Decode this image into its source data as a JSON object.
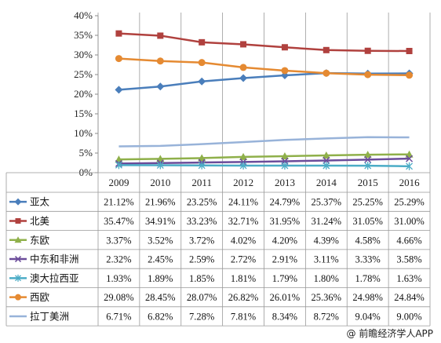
{
  "chart_data": {
    "type": "line",
    "categories": [
      "2009",
      "2010",
      "2011",
      "2012",
      "2013",
      "2014",
      "2015",
      "2016"
    ],
    "y_ticks": [
      "40%",
      "35%",
      "30%",
      "25%",
      "20%",
      "15%",
      "10%",
      "5%",
      "0%"
    ],
    "ylim": [
      0,
      40
    ],
    "grid": "off",
    "legend": "data-table",
    "series": [
      {
        "name": "亚太",
        "color": "#4a7ebb",
        "marker": "diamond",
        "values": [
          21.12,
          21.96,
          23.25,
          24.11,
          24.79,
          25.37,
          25.25,
          25.29
        ],
        "labels": [
          "21.12%",
          "21.96%",
          "23.25%",
          "24.11%",
          "24.79%",
          "25.37%",
          "25.25%",
          "25.29%"
        ]
      },
      {
        "name": "北美",
        "color": "#b0413e",
        "marker": "square",
        "values": [
          35.47,
          34.91,
          33.23,
          32.71,
          31.95,
          31.24,
          31.05,
          31.0
        ],
        "labels": [
          "35.47%",
          "34.91%",
          "33.23%",
          "32.71%",
          "31.95%",
          "31.24%",
          "31.05%",
          "31.00%"
        ]
      },
      {
        "name": "东欧",
        "color": "#8fb04a",
        "marker": "triangle",
        "values": [
          3.37,
          3.52,
          3.72,
          4.02,
          4.2,
          4.39,
          4.58,
          4.66
        ],
        "labels": [
          "3.37%",
          "3.52%",
          "3.72%",
          "4.02%",
          "4.20%",
          "4.39%",
          "4.58%",
          "4.66%"
        ]
      },
      {
        "name": "中东和非洲",
        "color": "#6b4c9a",
        "marker": "x",
        "values": [
          2.32,
          2.45,
          2.59,
          2.72,
          2.91,
          3.11,
          3.33,
          3.58
        ],
        "labels": [
          "2.32%",
          "2.45%",
          "2.59%",
          "2.72%",
          "2.91%",
          "3.11%",
          "3.33%",
          "3.58%"
        ]
      },
      {
        "name": "澳大拉西亚",
        "color": "#4bacc6",
        "marker": "star",
        "values": [
          1.93,
          1.89,
          1.85,
          1.81,
          1.79,
          1.8,
          1.78,
          1.63
        ],
        "labels": [
          "1.93%",
          "1.89%",
          "1.85%",
          "1.81%",
          "1.79%",
          "1.80%",
          "1.78%",
          "1.63%"
        ]
      },
      {
        "name": "西欧",
        "color": "#e58a32",
        "marker": "circle",
        "values": [
          29.08,
          28.45,
          28.07,
          26.82,
          26.01,
          25.36,
          24.98,
          24.84
        ],
        "labels": [
          "29.08%",
          "28.45%",
          "28.07%",
          "26.82%",
          "26.01%",
          "25.36%",
          "24.98%",
          "24.84%"
        ]
      },
      {
        "name": "拉丁美洲",
        "color": "#98b3d9",
        "marker": "none",
        "values": [
          6.71,
          6.82,
          7.28,
          7.81,
          8.34,
          8.72,
          9.04,
          9.0
        ],
        "labels": [
          "6.71%",
          "6.82%",
          "7.28%",
          "7.81%",
          "8.34%",
          "8.72%",
          "9.04%",
          "9.00%"
        ]
      }
    ]
  },
  "footer": {
    "text": "@ 前瞻经济学人APP"
  }
}
